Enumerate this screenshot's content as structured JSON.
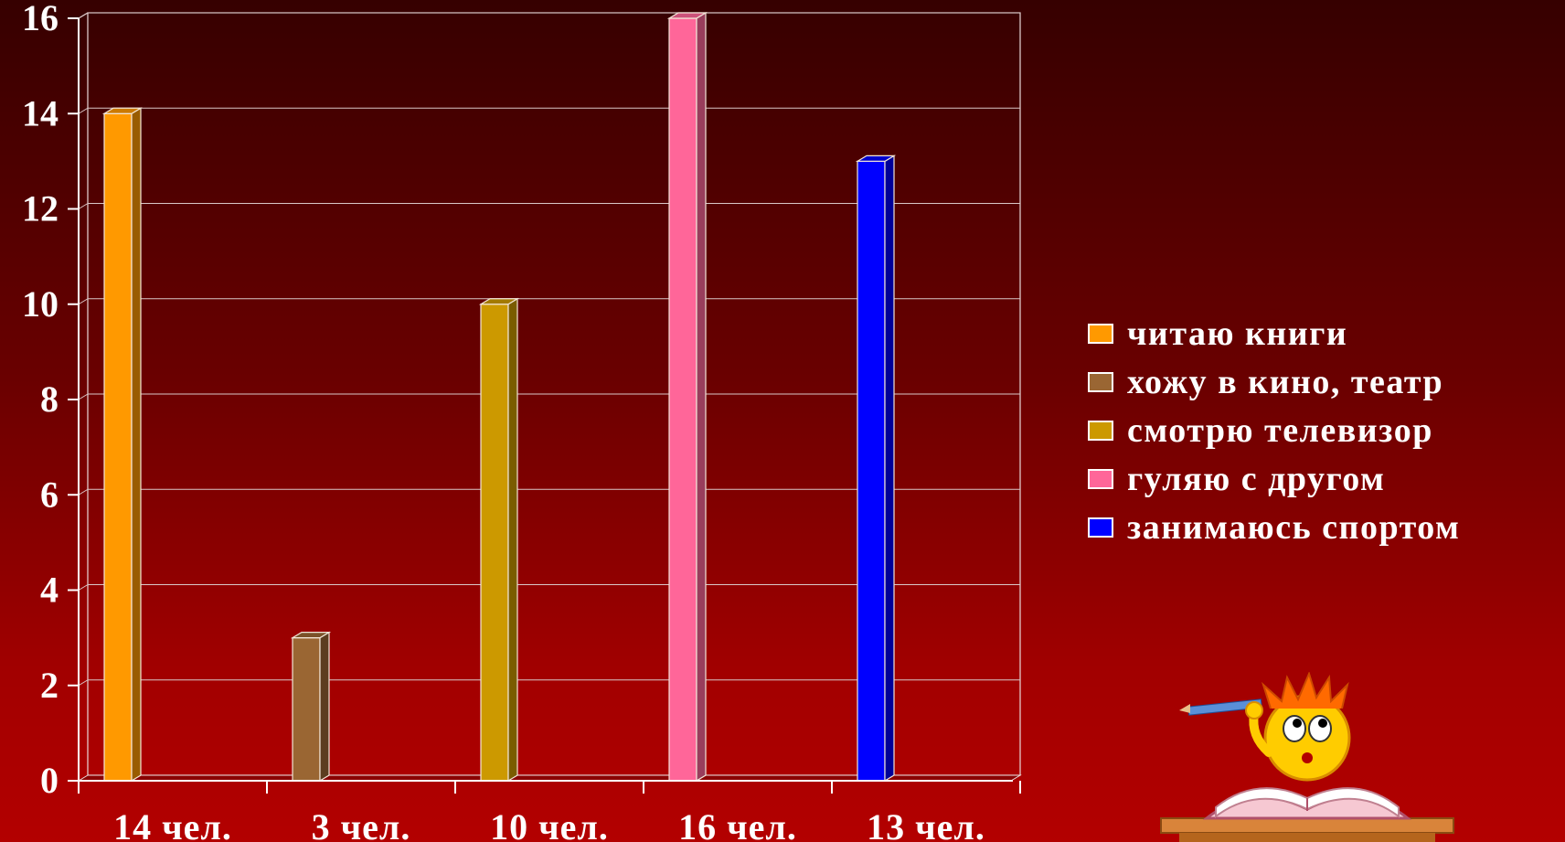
{
  "chart_data": {
    "type": "bar",
    "categories": [
      "14 чел.",
      "3 чел.",
      "10 чел.",
      "16 чел.",
      "13 чел."
    ],
    "series": [
      {
        "name": "читаю книги",
        "category_index": 0,
        "value": 14,
        "color": "#ff9900"
      },
      {
        "name": "хожу в кино, театр",
        "category_index": 1,
        "value": 3,
        "color": "#9a6633"
      },
      {
        "name": "смотрю телевизор",
        "category_index": 2,
        "value": 10,
        "color": "#cc9900"
      },
      {
        "name": "гуляю с другом",
        "category_index": 3,
        "value": 16,
        "color": "#ff6699"
      },
      {
        "name": "занимаюсь спортом",
        "category_index": 4,
        "value": 13,
        "color": "#0000ff"
      }
    ],
    "yticks": [
      0,
      2,
      4,
      6,
      8,
      10,
      12,
      14,
      16
    ],
    "ylim": [
      0,
      16
    ],
    "grid": true,
    "legend_position": "right",
    "title": "",
    "xlabel": "",
    "ylabel": ""
  },
  "decoration": {
    "mascot": "smiley-reading-book-icon"
  }
}
